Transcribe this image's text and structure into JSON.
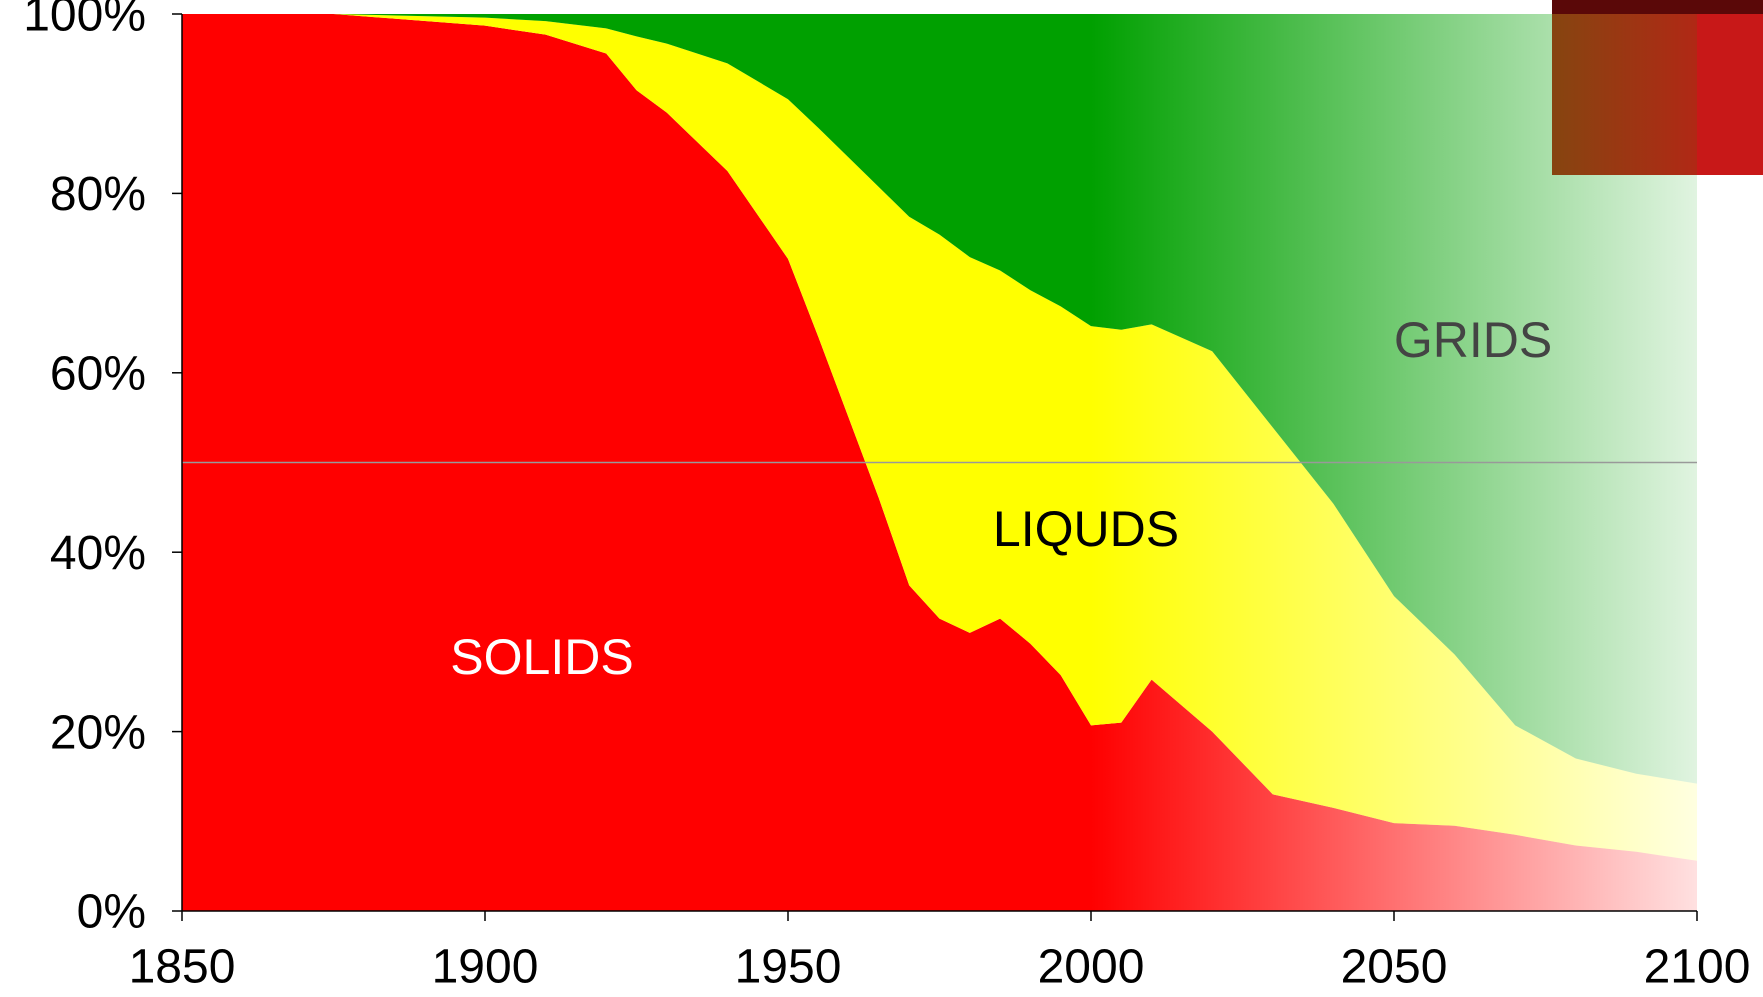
{
  "chart_data": {
    "type": "stacked_area",
    "x": [
      1850,
      1875,
      1900,
      1910,
      1920,
      1925,
      1930,
      1940,
      1950,
      1955,
      1960,
      1965,
      1970,
      1975,
      1980,
      1985,
      1990,
      1995,
      2000,
      2005,
      2010,
      2020,
      2030,
      2040,
      2050,
      2060,
      2070,
      2080,
      2090,
      2100
    ],
    "series": [
      {
        "name": "SOLIDS",
        "color": "#ff0000",
        "values": [
          100,
          100,
          98.7,
          97.7,
          95.6,
          91.5,
          89,
          82.5,
          72.7,
          64,
          55,
          46,
          36.3,
          32.6,
          31,
          32.6,
          29.8,
          26.3,
          20.7,
          21,
          25.8,
          20,
          13,
          11.5,
          9.8,
          9.5,
          8.5,
          7.3,
          6.6,
          5.6
        ]
      },
      {
        "name": "LIQUDS",
        "color": "#ffff00",
        "values": [
          0,
          0,
          0.9,
          1.5,
          2.8,
          6,
          7.7,
          12,
          17.8,
          23.3,
          29,
          34.7,
          41.1,
          42.8,
          41.9,
          38.8,
          39.4,
          41.1,
          44.5,
          43.8,
          39.6,
          42.4,
          40.9,
          33.9,
          25.3,
          19.1,
          12.2,
          9.7,
          8.7,
          8.6
        ]
      },
      {
        "name": "GRIDS",
        "color": "#00a000",
        "values": [
          0,
          0,
          0.4,
          0.8,
          1.6,
          2.5,
          3.3,
          5.5,
          9.5,
          12.7,
          16,
          19.3,
          22.6,
          24.6,
          27.1,
          28.6,
          30.8,
          32.6,
          34.8,
          35.2,
          34.6,
          37.6,
          46.1,
          54.6,
          64.9,
          71.4,
          79.3,
          83,
          84.7,
          85.8
        ]
      }
    ],
    "annotations": [
      "SOLIDS",
      "LIQUDS",
      "GRIDS"
    ],
    "xlim": [
      1850,
      2100
    ],
    "xticks": [
      1850,
      1900,
      1950,
      2000,
      2050,
      2100
    ],
    "ylim": [
      0,
      100
    ],
    "yticks": [
      {
        "value": 0,
        "label": "0%"
      },
      {
        "value": 20,
        "label": "20%"
      },
      {
        "value": 40,
        "label": "40%"
      },
      {
        "value": 60,
        "label": "60%"
      },
      {
        "value": 80,
        "label": "80%"
      },
      {
        "value": 100,
        "label": "100%"
      }
    ],
    "reference_lines": [
      50
    ]
  }
}
